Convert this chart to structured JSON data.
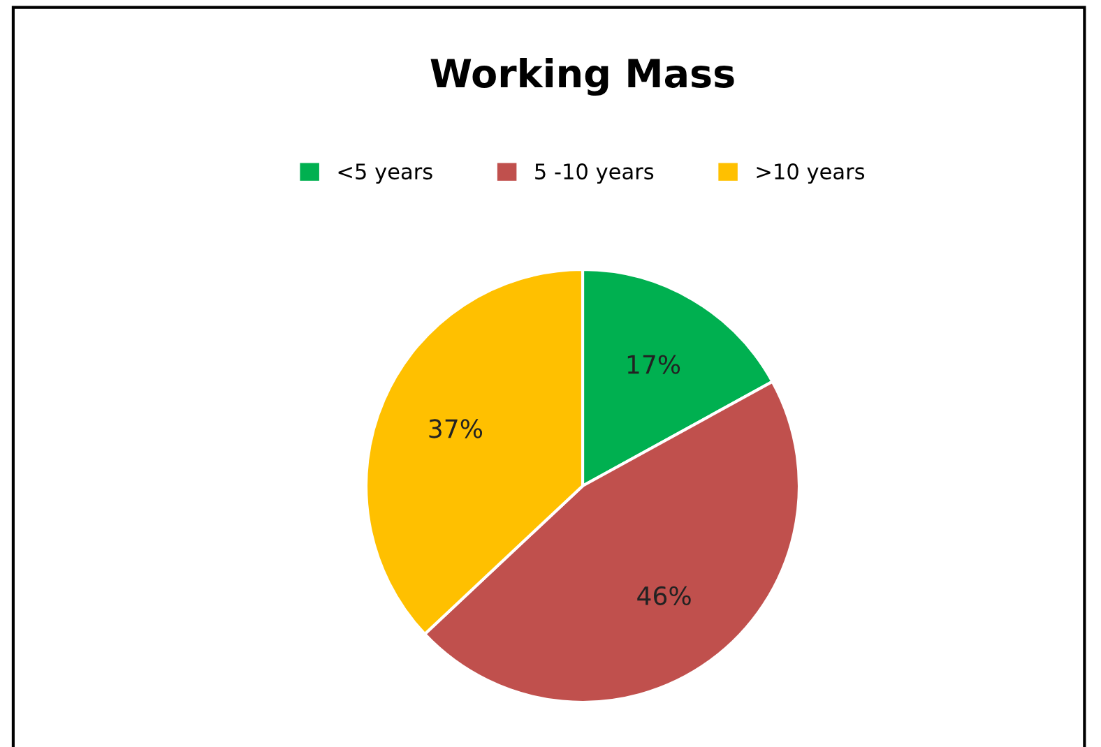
{
  "chart_data": {
    "type": "pie",
    "title": "Working Mass",
    "categories": [
      "<5 years",
      "5 -10 years",
      ">10 years"
    ],
    "values": [
      17,
      46,
      37
    ],
    "colors": [
      "#00b050",
      "#c0504d",
      "#ffc000"
    ],
    "value_labels": [
      "17%",
      "46%",
      "37%"
    ],
    "legend": "top"
  }
}
